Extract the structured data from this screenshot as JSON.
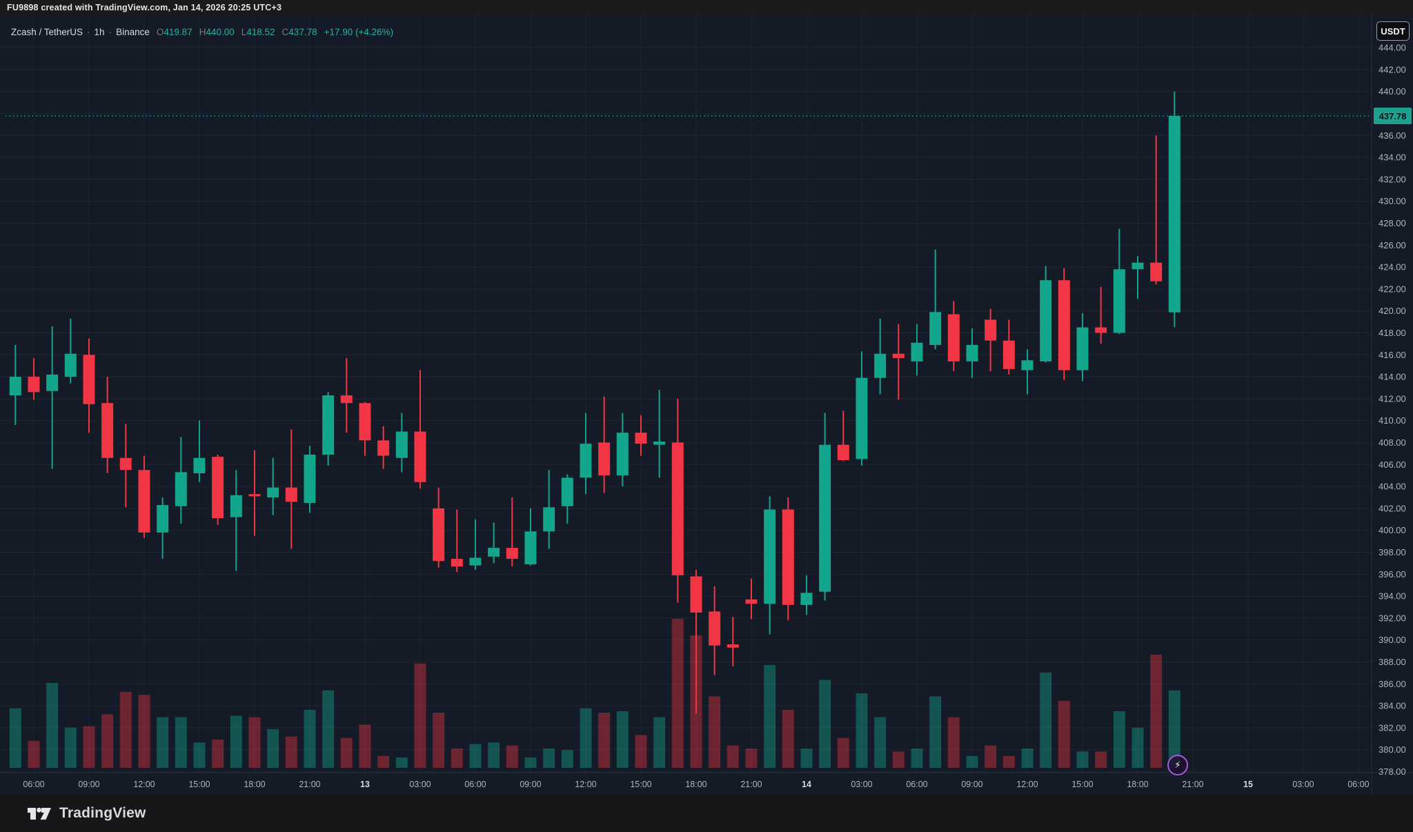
{
  "header": {
    "attribution": "FU9898 created with TradingView.com, Jan 14, 2026 20:25 UTC+3"
  },
  "legend": {
    "symbol": "Zcash / TetherUS",
    "interval": "1h",
    "exchange": "Binance",
    "o_label": "O",
    "o": "419.87",
    "h_label": "H",
    "h": "440.00",
    "l_label": "L",
    "l": "418.52",
    "c_label": "C",
    "c": "437.78",
    "change": "+17.90 (+4.26%)"
  },
  "price_axis": {
    "currency": "USDT",
    "last_price": "437.78",
    "labels": [
      "444.00",
      "442.00",
      "440.00",
      "436.00",
      "434.00",
      "432.00",
      "430.00",
      "428.00",
      "426.00",
      "424.00",
      "422.00",
      "420.00",
      "418.00",
      "416.00",
      "414.00",
      "412.00",
      "410.00",
      "408.00",
      "406.00",
      "404.00",
      "402.00",
      "400.00",
      "398.00",
      "396.00",
      "394.00",
      "392.00",
      "390.00",
      "388.00",
      "386.00",
      "384.00",
      "382.00",
      "380.00",
      "378.00"
    ]
  },
  "time_axis": {
    "ticks": [
      {
        "i": 1,
        "label": "06:00",
        "day": false
      },
      {
        "i": 4,
        "label": "09:00",
        "day": false
      },
      {
        "i": 7,
        "label": "12:00",
        "day": false
      },
      {
        "i": 10,
        "label": "15:00",
        "day": false
      },
      {
        "i": 13,
        "label": "18:00",
        "day": false
      },
      {
        "i": 16,
        "label": "21:00",
        "day": false
      },
      {
        "i": 19,
        "label": "13",
        "day": true
      },
      {
        "i": 22,
        "label": "03:00",
        "day": false
      },
      {
        "i": 25,
        "label": "06:00",
        "day": false
      },
      {
        "i": 28,
        "label": "09:00",
        "day": false
      },
      {
        "i": 31,
        "label": "12:00",
        "day": false
      },
      {
        "i": 34,
        "label": "15:00",
        "day": false
      },
      {
        "i": 37,
        "label": "18:00",
        "day": false
      },
      {
        "i": 40,
        "label": "21:00",
        "day": false
      },
      {
        "i": 43,
        "label": "14",
        "day": true
      },
      {
        "i": 46,
        "label": "03:00",
        "day": false
      },
      {
        "i": 49,
        "label": "06:00",
        "day": false
      },
      {
        "i": 52,
        "label": "09:00",
        "day": false
      },
      {
        "i": 55,
        "label": "12:00",
        "day": false
      },
      {
        "i": 58,
        "label": "15:00",
        "day": false
      },
      {
        "i": 61,
        "label": "18:00",
        "day": false
      },
      {
        "i": 64,
        "label": "21:00",
        "day": false
      },
      {
        "i": 67,
        "label": "15",
        "day": true
      },
      {
        "i": 70,
        "label": "03:00",
        "day": false
      },
      {
        "i": 73,
        "label": "06:00",
        "day": false
      }
    ]
  },
  "footer": {
    "brand": "TradingView"
  },
  "widgets": {
    "flash_icon": "lightning-bolt"
  },
  "colors": {
    "up": "#13a68c",
    "down": "#f23645",
    "vol_up": "rgba(19,166,140,0.42)",
    "vol_down": "rgba(242,54,69,0.40)",
    "accent": "#26a69a",
    "badge_bg": "#1ca28f",
    "grid": "rgba(170,180,210,0.07)",
    "axis_text": "#b2b5be",
    "separator": "#2a2e39"
  },
  "chart_data": {
    "type": "candlestick+volume",
    "title": "Zcash / TetherUS · 1h · Binance",
    "ylabel": "USDT",
    "ylim": [
      377.5,
      445.5
    ],
    "grid": true,
    "price_line": 437.78,
    "volume_unit": "relative 0-1",
    "candles": [
      {
        "t": "Jan 12 05:00",
        "o": 412.3,
        "h": 416.9,
        "l": 409.6,
        "c": 414.0,
        "v": 0.4
      },
      {
        "t": "Jan 12 06:00",
        "o": 414.0,
        "h": 415.7,
        "l": 411.9,
        "c": 412.6,
        "v": 0.18
      },
      {
        "t": "Jan 12 07:00",
        "o": 412.7,
        "h": 418.6,
        "l": 405.6,
        "c": 414.2,
        "v": 0.57
      },
      {
        "t": "Jan 12 08:00",
        "o": 414.0,
        "h": 419.3,
        "l": 413.4,
        "c": 416.1,
        "v": 0.27
      },
      {
        "t": "Jan 12 09:00",
        "o": 416.0,
        "h": 417.5,
        "l": 408.9,
        "c": 411.5,
        "v": 0.28
      },
      {
        "t": "Jan 12 10:00",
        "o": 411.6,
        "h": 414.0,
        "l": 405.2,
        "c": 406.6,
        "v": 0.36
      },
      {
        "t": "Jan 12 11:00",
        "o": 406.6,
        "h": 409.7,
        "l": 402.1,
        "c": 405.5,
        "v": 0.51
      },
      {
        "t": "Jan 12 12:00",
        "o": 405.5,
        "h": 406.8,
        "l": 399.3,
        "c": 399.8,
        "v": 0.49
      },
      {
        "t": "Jan 12 13:00",
        "o": 399.8,
        "h": 403.0,
        "l": 397.4,
        "c": 402.3,
        "v": 0.34
      },
      {
        "t": "Jan 12 14:00",
        "o": 402.2,
        "h": 408.5,
        "l": 400.6,
        "c": 405.3,
        "v": 0.34
      },
      {
        "t": "Jan 12 15:00",
        "o": 405.2,
        "h": 410.0,
        "l": 404.4,
        "c": 406.6,
        "v": 0.17
      },
      {
        "t": "Jan 12 16:00",
        "o": 406.7,
        "h": 406.9,
        "l": 400.5,
        "c": 401.1,
        "v": 0.19
      },
      {
        "t": "Jan 12 17:00",
        "o": 401.2,
        "h": 405.5,
        "l": 396.3,
        "c": 403.2,
        "v": 0.35
      },
      {
        "t": "Jan 12 18:00",
        "o": 403.3,
        "h": 407.3,
        "l": 399.5,
        "c": 403.1,
        "v": 0.34
      },
      {
        "t": "Jan 12 19:00",
        "o": 403.0,
        "h": 406.6,
        "l": 401.4,
        "c": 403.9,
        "v": 0.26
      },
      {
        "t": "Jan 12 20:00",
        "o": 403.9,
        "h": 409.2,
        "l": 398.3,
        "c": 402.6,
        "v": 0.21
      },
      {
        "t": "Jan 12 21:00",
        "o": 402.5,
        "h": 407.7,
        "l": 401.6,
        "c": 406.9,
        "v": 0.39
      },
      {
        "t": "Jan 12 22:00",
        "o": 406.9,
        "h": 412.6,
        "l": 405.9,
        "c": 412.3,
        "v": 0.52
      },
      {
        "t": "Jan 12 23:00",
        "o": 412.3,
        "h": 415.7,
        "l": 408.9,
        "c": 411.6,
        "v": 0.2
      },
      {
        "t": "Jan 13 00:00",
        "o": 411.6,
        "h": 411.7,
        "l": 406.8,
        "c": 408.2,
        "v": 0.29
      },
      {
        "t": "Jan 13 01:00",
        "o": 408.2,
        "h": 409.5,
        "l": 405.6,
        "c": 406.8,
        "v": 0.08
      },
      {
        "t": "Jan 13 02:00",
        "o": 406.6,
        "h": 410.7,
        "l": 405.3,
        "c": 409.0,
        "v": 0.07
      },
      {
        "t": "Jan 13 03:00",
        "o": 409.0,
        "h": 414.6,
        "l": 403.8,
        "c": 404.4,
        "v": 0.7
      },
      {
        "t": "Jan 13 04:00",
        "o": 402.0,
        "h": 403.9,
        "l": 396.6,
        "c": 397.2,
        "v": 0.37
      },
      {
        "t": "Jan 13 05:00",
        "o": 397.4,
        "h": 401.9,
        "l": 396.2,
        "c": 396.7,
        "v": 0.13
      },
      {
        "t": "Jan 13 06:00",
        "o": 396.8,
        "h": 401.0,
        "l": 396.4,
        "c": 397.5,
        "v": 0.16
      },
      {
        "t": "Jan 13 07:00",
        "o": 397.6,
        "h": 400.7,
        "l": 397.0,
        "c": 398.4,
        "v": 0.17
      },
      {
        "t": "Jan 13 08:00",
        "o": 398.4,
        "h": 403.0,
        "l": 396.7,
        "c": 397.4,
        "v": 0.15
      },
      {
        "t": "Jan 13 09:00",
        "o": 396.9,
        "h": 402.0,
        "l": 396.8,
        "c": 399.9,
        "v": 0.07
      },
      {
        "t": "Jan 13 10:00",
        "o": 399.9,
        "h": 405.5,
        "l": 398.3,
        "c": 402.1,
        "v": 0.13
      },
      {
        "t": "Jan 13 11:00",
        "o": 402.2,
        "h": 405.1,
        "l": 400.6,
        "c": 404.8,
        "v": 0.12
      },
      {
        "t": "Jan 13 12:00",
        "o": 404.8,
        "h": 410.7,
        "l": 403.3,
        "c": 407.9,
        "v": 0.4
      },
      {
        "t": "Jan 13 13:00",
        "o": 408.0,
        "h": 412.2,
        "l": 403.4,
        "c": 405.0,
        "v": 0.37
      },
      {
        "t": "Jan 13 14:00",
        "o": 405.0,
        "h": 410.7,
        "l": 404.0,
        "c": 408.9,
        "v": 0.38
      },
      {
        "t": "Jan 13 15:00",
        "o": 408.9,
        "h": 410.5,
        "l": 406.8,
        "c": 407.9,
        "v": 0.22
      },
      {
        "t": "Jan 13 16:00",
        "o": 407.8,
        "h": 412.8,
        "l": 404.8,
        "c": 408.1,
        "v": 0.34
      },
      {
        "t": "Jan 13 17:00",
        "o": 408.0,
        "h": 412.0,
        "l": 393.4,
        "c": 395.9,
        "v": 1.0
      },
      {
        "t": "Jan 13 18:00",
        "o": 395.8,
        "h": 396.4,
        "l": 383.3,
        "c": 392.5,
        "v": 0.89
      },
      {
        "t": "Jan 13 19:00",
        "o": 392.6,
        "h": 394.9,
        "l": 386.8,
        "c": 389.5,
        "v": 0.48
      },
      {
        "t": "Jan 13 20:00",
        "o": 389.6,
        "h": 392.1,
        "l": 387.6,
        "c": 389.3,
        "v": 0.15
      },
      {
        "t": "Jan 13 21:00",
        "o": 393.7,
        "h": 395.6,
        "l": 391.9,
        "c": 393.3,
        "v": 0.13
      },
      {
        "t": "Jan 13 22:00",
        "o": 393.3,
        "h": 403.1,
        "l": 390.5,
        "c": 401.9,
        "v": 0.69
      },
      {
        "t": "Jan 13 23:00",
        "o": 401.9,
        "h": 403.0,
        "l": 391.8,
        "c": 393.2,
        "v": 0.39
      },
      {
        "t": "Jan 14 00:00",
        "o": 393.2,
        "h": 395.9,
        "l": 392.3,
        "c": 394.3,
        "v": 0.13
      },
      {
        "t": "Jan 14 01:00",
        "o": 394.4,
        "h": 410.7,
        "l": 393.6,
        "c": 407.8,
        "v": 0.59
      },
      {
        "t": "Jan 14 02:00",
        "o": 407.8,
        "h": 410.9,
        "l": 406.3,
        "c": 406.4,
        "v": 0.2
      },
      {
        "t": "Jan 14 03:00",
        "o": 406.5,
        "h": 416.3,
        "l": 405.9,
        "c": 413.9,
        "v": 0.5
      },
      {
        "t": "Jan 14 04:00",
        "o": 413.9,
        "h": 419.3,
        "l": 412.4,
        "c": 416.1,
        "v": 0.34
      },
      {
        "t": "Jan 14 05:00",
        "o": 416.1,
        "h": 418.8,
        "l": 411.9,
        "c": 415.7,
        "v": 0.11
      },
      {
        "t": "Jan 14 06:00",
        "o": 415.4,
        "h": 418.8,
        "l": 414.1,
        "c": 417.1,
        "v": 0.13
      },
      {
        "t": "Jan 14 07:00",
        "o": 416.9,
        "h": 425.6,
        "l": 416.5,
        "c": 419.9,
        "v": 0.48
      },
      {
        "t": "Jan 14 08:00",
        "o": 419.7,
        "h": 420.9,
        "l": 414.5,
        "c": 415.4,
        "v": 0.34
      },
      {
        "t": "Jan 14 09:00",
        "o": 415.4,
        "h": 418.4,
        "l": 413.9,
        "c": 416.9,
        "v": 0.08
      },
      {
        "t": "Jan 14 10:00",
        "o": 419.2,
        "h": 420.2,
        "l": 414.5,
        "c": 417.3,
        "v": 0.15
      },
      {
        "t": "Jan 14 11:00",
        "o": 417.3,
        "h": 419.2,
        "l": 414.2,
        "c": 414.7,
        "v": 0.08
      },
      {
        "t": "Jan 14 12:00",
        "o": 414.6,
        "h": 416.5,
        "l": 412.4,
        "c": 415.5,
        "v": 0.13
      },
      {
        "t": "Jan 14 13:00",
        "o": 415.4,
        "h": 424.1,
        "l": 415.3,
        "c": 422.8,
        "v": 0.64
      },
      {
        "t": "Jan 14 14:00",
        "o": 422.8,
        "h": 423.9,
        "l": 413.7,
        "c": 414.6,
        "v": 0.45
      },
      {
        "t": "Jan 14 15:00",
        "o": 414.6,
        "h": 419.8,
        "l": 413.6,
        "c": 418.5,
        "v": 0.11
      },
      {
        "t": "Jan 14 16:00",
        "o": 418.5,
        "h": 422.2,
        "l": 417.0,
        "c": 418.0,
        "v": 0.11
      },
      {
        "t": "Jan 14 17:00",
        "o": 418.0,
        "h": 427.5,
        "l": 417.9,
        "c": 423.8,
        "v": 0.38
      },
      {
        "t": "Jan 14 18:00",
        "o": 423.8,
        "h": 425.0,
        "l": 421.1,
        "c": 424.4,
        "v": 0.27
      },
      {
        "t": "Jan 14 19:00",
        "o": 424.4,
        "h": 436.0,
        "l": 422.4,
        "c": 422.7,
        "v": 0.76
      },
      {
        "t": "Jan 14 20:00",
        "o": 419.87,
        "h": 440.0,
        "l": 418.52,
        "c": 437.78,
        "v": 0.52
      }
    ]
  }
}
